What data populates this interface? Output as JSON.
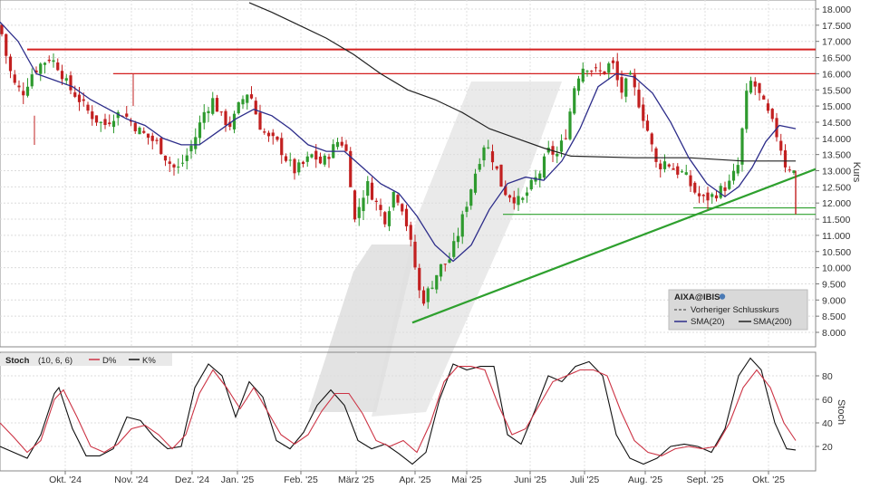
{
  "chart_data": [
    {
      "type": "candlestick",
      "symbol": "AIXA@IBIS",
      "ylabel": "Kurs",
      "ylim": [
        7.6,
        18.2
      ],
      "yticks": [
        "8.000",
        "8.500",
        "9.000",
        "9.500",
        "10.000",
        "10.500",
        "11.000",
        "11.500",
        "12.000",
        "12.500",
        "13.000",
        "13.500",
        "14.000",
        "14.500",
        "15.000",
        "15.500",
        "16.000",
        "16.500",
        "17.000",
        "17.500",
        "18.000"
      ],
      "xticks": [
        "Okt. '24",
        "Nov. '24",
        "Dez. '24",
        "Jan. '25",
        "Feb. '25",
        "März '25",
        "Apr. '25",
        "Mai '25",
        "Juni '25",
        "Juli '25",
        "Aug. '25",
        "Sept. '25",
        "Okt. '25"
      ],
      "legend": {
        "title": "AIXA@IBIS",
        "items": [
          "Vorheriger Schlusskurs",
          "SMA(20)",
          "SMA(200)"
        ]
      },
      "close_path": [
        [
          0,
          17.5
        ],
        [
          8,
          16.4
        ],
        [
          15,
          15.7
        ],
        [
          25,
          15.4
        ],
        [
          35,
          16.0
        ],
        [
          45,
          16.3
        ],
        [
          55,
          16.5
        ],
        [
          65,
          16.2
        ],
        [
          75,
          15.6
        ],
        [
          85,
          15.3
        ],
        [
          95,
          14.9
        ],
        [
          105,
          14.6
        ],
        [
          115,
          14.4
        ],
        [
          125,
          14.7
        ],
        [
          135,
          14.8
        ],
        [
          145,
          14.5
        ],
        [
          155,
          14.2
        ],
        [
          165,
          14.0
        ],
        [
          175,
          13.8
        ],
        [
          185,
          13.3
        ],
        [
          195,
          13.0
        ],
        [
          205,
          13.4
        ],
        [
          215,
          14.0
        ],
        [
          225,
          14.8
        ],
        [
          235,
          15.2
        ],
        [
          245,
          14.6
        ],
        [
          255,
          14.4
        ],
        [
          265,
          15.1
        ],
        [
          275,
          15.5
        ],
        [
          285,
          14.5
        ],
        [
          295,
          14.0
        ],
        [
          305,
          13.9
        ],
        [
          315,
          13.4
        ],
        [
          325,
          13.0
        ],
        [
          335,
          13.2
        ],
        [
          345,
          13.5
        ],
        [
          355,
          13.2
        ],
        [
          365,
          13.6
        ],
        [
          375,
          14.0
        ],
        [
          385,
          13.4
        ],
        [
          390,
          11.3
        ],
        [
          395,
          11.8
        ],
        [
          405,
          12.6
        ],
        [
          415,
          12.0
        ],
        [
          425,
          11.5
        ],
        [
          435,
          12.4
        ],
        [
          445,
          11.8
        ],
        [
          455,
          10.5
        ],
        [
          465,
          8.9
        ],
        [
          475,
          9.4
        ],
        [
          485,
          10.0
        ],
        [
          495,
          10.2
        ],
        [
          505,
          11.0
        ],
        [
          515,
          12.0
        ],
        [
          525,
          13.0
        ],
        [
          535,
          13.9
        ],
        [
          545,
          13.3
        ],
        [
          555,
          12.4
        ],
        [
          565,
          12.2
        ],
        [
          575,
          12.0
        ],
        [
          585,
          12.5
        ],
        [
          595,
          12.9
        ],
        [
          605,
          13.6
        ],
        [
          615,
          13.5
        ],
        [
          625,
          14.2
        ],
        [
          635,
          15.8
        ],
        [
          645,
          16.3
        ],
        [
          655,
          16.1
        ],
        [
          665,
          16.0
        ],
        [
          675,
          16.4
        ],
        [
          685,
          15.4
        ],
        [
          695,
          15.9
        ],
        [
          705,
          15.1
        ],
        [
          715,
          14.2
        ],
        [
          725,
          13.1
        ],
        [
          735,
          13.3
        ],
        [
          745,
          13.0
        ],
        [
          755,
          12.9
        ],
        [
          765,
          12.4
        ],
        [
          775,
          12.1
        ],
        [
          785,
          12.2
        ],
        [
          795,
          12.4
        ],
        [
          805,
          12.6
        ],
        [
          815,
          13.2
        ],
        [
          820,
          14.5
        ],
        [
          825,
          15.6
        ],
        [
          830,
          15.8
        ],
        [
          840,
          15.2
        ],
        [
          850,
          14.6
        ],
        [
          860,
          13.9
        ],
        [
          866,
          13.2
        ],
        [
          872,
          13.1
        ],
        [
          878,
          12.9
        ]
      ],
      "sma20_path": [
        [
          0,
          17.6
        ],
        [
          20,
          17.0
        ],
        [
          40,
          16.0
        ],
        [
          60,
          15.8
        ],
        [
          80,
          15.6
        ],
        [
          100,
          15.2
        ],
        [
          120,
          14.9
        ],
        [
          140,
          14.6
        ],
        [
          160,
          14.4
        ],
        [
          180,
          14.0
        ],
        [
          200,
          13.8
        ],
        [
          220,
          13.8
        ],
        [
          240,
          14.2
        ],
        [
          260,
          14.6
        ],
        [
          280,
          14.9
        ],
        [
          300,
          14.7
        ],
        [
          320,
          14.3
        ],
        [
          340,
          13.8
        ],
        [
          360,
          13.6
        ],
        [
          380,
          13.6
        ],
        [
          400,
          13.1
        ],
        [
          420,
          12.6
        ],
        [
          440,
          12.3
        ],
        [
          460,
          11.6
        ],
        [
          480,
          10.7
        ],
        [
          500,
          10.2
        ],
        [
          520,
          10.7
        ],
        [
          540,
          11.8
        ],
        [
          560,
          12.6
        ],
        [
          580,
          12.8
        ],
        [
          600,
          12.7
        ],
        [
          620,
          13.3
        ],
        [
          640,
          14.3
        ],
        [
          660,
          15.6
        ],
        [
          680,
          16.0
        ],
        [
          700,
          15.9
        ],
        [
          720,
          15.4
        ],
        [
          740,
          14.5
        ],
        [
          760,
          13.4
        ],
        [
          780,
          12.6
        ],
        [
          800,
          12.2
        ],
        [
          815,
          12.5
        ],
        [
          830,
          13.1
        ],
        [
          845,
          13.9
        ],
        [
          860,
          14.4
        ],
        [
          878,
          14.3
        ]
      ],
      "sma200_path": [
        [
          275,
          18.2
        ],
        [
          300,
          17.9
        ],
        [
          330,
          17.5
        ],
        [
          360,
          17.1
        ],
        [
          390,
          16.6
        ],
        [
          420,
          16.0
        ],
        [
          450,
          15.5
        ],
        [
          480,
          15.2
        ],
        [
          510,
          14.8
        ],
        [
          540,
          14.3
        ],
        [
          570,
          14.0
        ],
        [
          600,
          13.7
        ],
        [
          630,
          13.45
        ],
        [
          700,
          13.4
        ],
        [
          760,
          13.4
        ],
        [
          820,
          13.3
        ],
        [
          878,
          13.3
        ]
      ],
      "resistance_lines": [
        {
          "x1": 30,
          "x2": 900,
          "y": 16.75
        },
        {
          "x1": 125,
          "x2": 900,
          "y": 16.0
        }
      ],
      "support_lines": [
        {
          "x1": 555,
          "x2": 900,
          "y": 11.65
        },
        {
          "x1": 765,
          "x2": 900,
          "y": 11.85
        }
      ],
      "trend_line": {
        "x1": 455,
        "y1": 8.3,
        "x2": 900,
        "y2": 13.05
      }
    },
    {
      "type": "line",
      "title": "Stoch",
      "params": "(10, 6, 6)",
      "ylabel": "Stoch",
      "ylim": [
        0,
        100
      ],
      "yticks": [
        "20",
        "40",
        "60",
        "80"
      ],
      "series": [
        {
          "name": "D%",
          "color": "#cc3344",
          "values_path": [
            [
              0,
              40
            ],
            [
              15,
              28
            ],
            [
              30,
              15
            ],
            [
              45,
              25
            ],
            [
              60,
              60
            ],
            [
              70,
              68
            ],
            [
              85,
              45
            ],
            [
              100,
              20
            ],
            [
              115,
              15
            ],
            [
              130,
              22
            ],
            [
              145,
              35
            ],
            [
              160,
              38
            ],
            [
              175,
              30
            ],
            [
              190,
              18
            ],
            [
              205,
              30
            ],
            [
              220,
              65
            ],
            [
              235,
              85
            ],
            [
              250,
              70
            ],
            [
              265,
              52
            ],
            [
              280,
              70
            ],
            [
              295,
              50
            ],
            [
              310,
              30
            ],
            [
              325,
              22
            ],
            [
              340,
              30
            ],
            [
              355,
              50
            ],
            [
              370,
              65
            ],
            [
              385,
              65
            ],
            [
              400,
              48
            ],
            [
              415,
              25
            ],
            [
              430,
              20
            ],
            [
              445,
              25
            ],
            [
              460,
              15
            ],
            [
              475,
              40
            ],
            [
              490,
              75
            ],
            [
              505,
              88
            ],
            [
              520,
              88
            ],
            [
              535,
              85
            ],
            [
              550,
              55
            ],
            [
              565,
              30
            ],
            [
              580,
              35
            ],
            [
              595,
              55
            ],
            [
              610,
              75
            ],
            [
              625,
              80
            ],
            [
              640,
              85
            ],
            [
              655,
              85
            ],
            [
              670,
              80
            ],
            [
              685,
              50
            ],
            [
              700,
              25
            ],
            [
              715,
              15
            ],
            [
              730,
              12
            ],
            [
              745,
              18
            ],
            [
              760,
              20
            ],
            [
              775,
              18
            ],
            [
              790,
              20
            ],
            [
              805,
              40
            ],
            [
              820,
              70
            ],
            [
              835,
              85
            ],
            [
              850,
              70
            ],
            [
              865,
              40
            ],
            [
              878,
              25
            ]
          ]
        },
        {
          "name": "K%",
          "color": "#111111",
          "values_path": [
            [
              0,
              20
            ],
            [
              15,
              15
            ],
            [
              30,
              10
            ],
            [
              45,
              30
            ],
            [
              60,
              65
            ],
            [
              65,
              70
            ],
            [
              80,
              35
            ],
            [
              95,
              12
            ],
            [
              110,
              12
            ],
            [
              125,
              18
            ],
            [
              140,
              45
            ],
            [
              155,
              42
            ],
            [
              170,
              28
            ],
            [
              185,
              18
            ],
            [
              200,
              20
            ],
            [
              215,
              70
            ],
            [
              230,
              90
            ],
            [
              245,
              80
            ],
            [
              260,
              45
            ],
            [
              275,
              75
            ],
            [
              290,
              62
            ],
            [
              305,
              25
            ],
            [
              320,
              18
            ],
            [
              335,
              32
            ],
            [
              350,
              55
            ],
            [
              365,
              68
            ],
            [
              380,
              55
            ],
            [
              395,
              25
            ],
            [
              410,
              18
            ],
            [
              425,
              22
            ],
            [
              440,
              14
            ],
            [
              455,
              5
            ],
            [
              470,
              15
            ],
            [
              485,
              60
            ],
            [
              500,
              90
            ],
            [
              515,
              85
            ],
            [
              530,
              88
            ],
            [
              545,
              88
            ],
            [
              560,
              30
            ],
            [
              575,
              22
            ],
            [
              590,
              50
            ],
            [
              605,
              80
            ],
            [
              620,
              75
            ],
            [
              635,
              88
            ],
            [
              650,
              92
            ],
            [
              665,
              80
            ],
            [
              680,
              30
            ],
            [
              695,
              10
            ],
            [
              710,
              5
            ],
            [
              725,
              10
            ],
            [
              740,
              20
            ],
            [
              755,
              22
            ],
            [
              770,
              20
            ],
            [
              785,
              15
            ],
            [
              800,
              35
            ],
            [
              815,
              80
            ],
            [
              828,
              95
            ],
            [
              840,
              85
            ],
            [
              855,
              40
            ],
            [
              868,
              18
            ],
            [
              878,
              17
            ]
          ]
        }
      ]
    }
  ]
}
